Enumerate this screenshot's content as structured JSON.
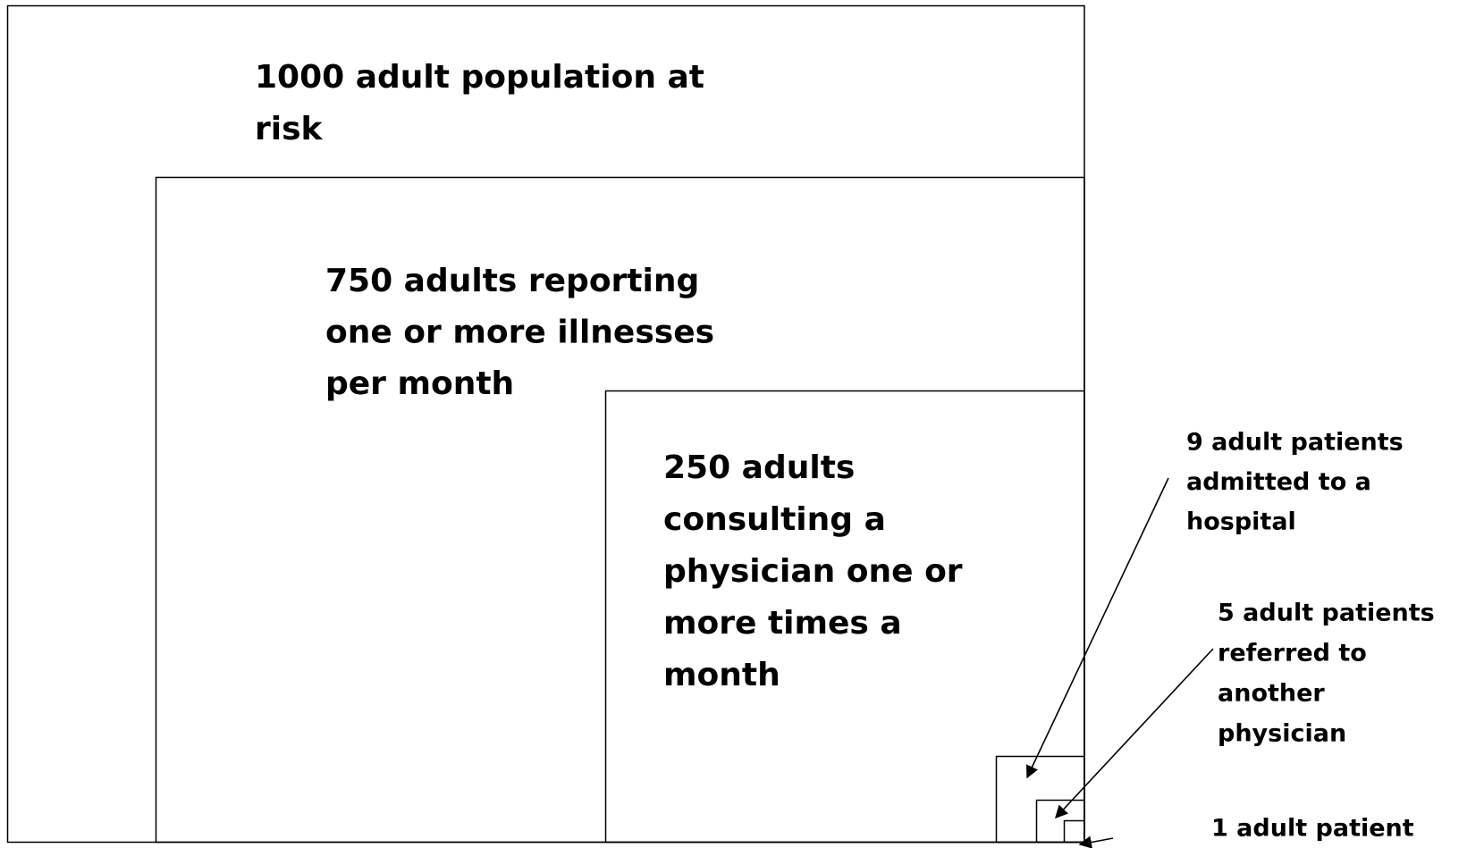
{
  "boxes": [
    {
      "lines": [
        "1000 adult population at",
        "risk"
      ]
    },
    {
      "lines": [
        "750 adults reporting",
        "one or more illnesses",
        "per month"
      ]
    },
    {
      "lines": [
        "250 adults",
        "consulting a",
        "physician one or",
        "more times a",
        "month"
      ]
    },
    {
      "lines": [
        "9 adult patients",
        "admitted to a",
        "hospital"
      ]
    },
    {
      "lines": [
        "5 adult patients",
        "referred to",
        "another",
        "physician"
      ]
    },
    {
      "lines": [
        "1 adult patient"
      ]
    }
  ]
}
